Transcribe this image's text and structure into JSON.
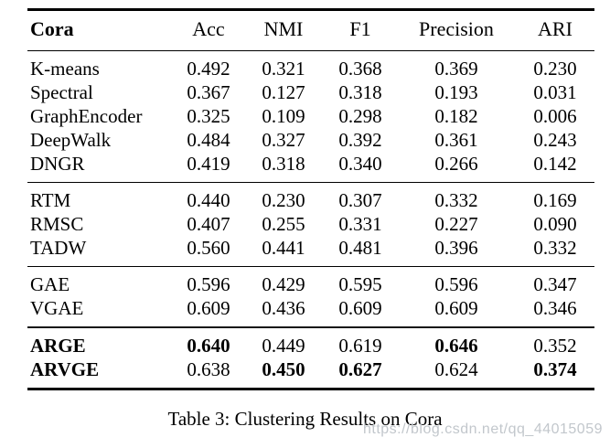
{
  "table": {
    "columns": [
      "Cora",
      "Acc",
      "NMI",
      "F1",
      "Precision",
      "ARI"
    ],
    "groups": [
      {
        "rows": [
          {
            "method": "K-means",
            "bold_method": false,
            "values": [
              "0.492",
              "0.321",
              "0.368",
              "0.369",
              "0.230"
            ],
            "bold": [
              false,
              false,
              false,
              false,
              false
            ]
          },
          {
            "method": "Spectral",
            "bold_method": false,
            "values": [
              "0.367",
              "0.127",
              "0.318",
              "0.193",
              "0.031"
            ],
            "bold": [
              false,
              false,
              false,
              false,
              false
            ]
          },
          {
            "method": "GraphEncoder",
            "bold_method": false,
            "values": [
              "0.325",
              "0.109",
              "0.298",
              "0.182",
              "0.006"
            ],
            "bold": [
              false,
              false,
              false,
              false,
              false
            ]
          },
          {
            "method": "DeepWalk",
            "bold_method": false,
            "values": [
              "0.484",
              "0.327",
              "0.392",
              "0.361",
              "0.243"
            ],
            "bold": [
              false,
              false,
              false,
              false,
              false
            ]
          },
          {
            "method": "DNGR",
            "bold_method": false,
            "values": [
              "0.419",
              "0.318",
              "0.340",
              "0.266",
              "0.142"
            ],
            "bold": [
              false,
              false,
              false,
              false,
              false
            ]
          }
        ]
      },
      {
        "rows": [
          {
            "method": "RTM",
            "bold_method": false,
            "values": [
              "0.440",
              "0.230",
              "0.307",
              "0.332",
              "0.169"
            ],
            "bold": [
              false,
              false,
              false,
              false,
              false
            ]
          },
          {
            "method": "RMSC",
            "bold_method": false,
            "values": [
              "0.407",
              "0.255",
              "0.331",
              "0.227",
              "0.090"
            ],
            "bold": [
              false,
              false,
              false,
              false,
              false
            ]
          },
          {
            "method": "TADW",
            "bold_method": false,
            "values": [
              "0.560",
              "0.441",
              "0.481",
              "0.396",
              "0.332"
            ],
            "bold": [
              false,
              false,
              false,
              false,
              false
            ]
          }
        ]
      },
      {
        "rows": [
          {
            "method": "GAE",
            "bold_method": false,
            "values": [
              "0.596",
              "0.429",
              "0.595",
              "0.596",
              "0.347"
            ],
            "bold": [
              false,
              false,
              false,
              false,
              false
            ]
          },
          {
            "method": "VGAE",
            "bold_method": false,
            "values": [
              "0.609",
              "0.436",
              "0.609",
              "0.609",
              "0.346"
            ],
            "bold": [
              false,
              false,
              false,
              false,
              false
            ]
          }
        ]
      },
      {
        "rows": [
          {
            "method": "ARGE",
            "bold_method": true,
            "values": [
              "0.640",
              "0.449",
              "0.619",
              "0.646",
              "0.352"
            ],
            "bold": [
              true,
              false,
              false,
              true,
              false
            ]
          },
          {
            "method": "ARVGE",
            "bold_method": true,
            "values": [
              "0.638",
              "0.450",
              "0.627",
              "0.624",
              "0.374"
            ],
            "bold": [
              false,
              true,
              true,
              false,
              true
            ]
          }
        ]
      }
    ]
  },
  "caption": "Table 3: Clustering Results on Cora",
  "watermark": "https://blog.csdn.net/qq_44015059"
}
